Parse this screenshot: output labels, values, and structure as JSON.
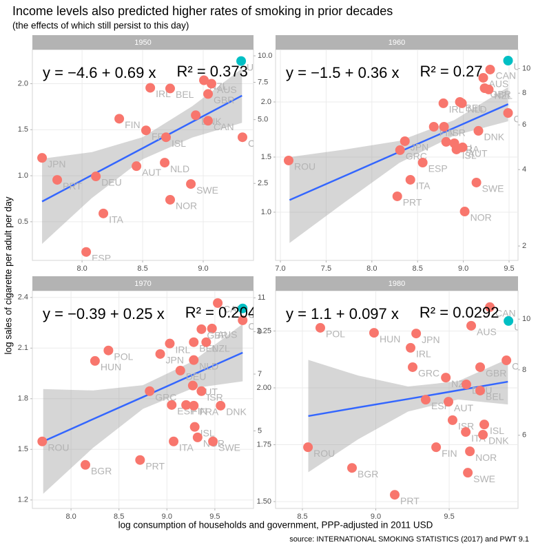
{
  "title": "Income levels also predicted higher rates of smoking in prior decades",
  "subtitle": "(the effects of which still persist to this day)",
  "ylabel": "log sales of cigarette per adult per day",
  "xlabel": "log consumption of households and government, PPP-adjusted in 2011 USD",
  "source": "source: INTERNATIONAL SMOKING STATISTICS (2017) and PWT 9.1",
  "chart_data": [
    {
      "type": "scatter",
      "title": "1950",
      "xlim": [
        7.59,
        9.415
      ],
      "ylim": [
        0.08,
        2.37
      ],
      "y2lim": [
        1.083,
        10.7
      ],
      "y2log": true,
      "xticks": [
        {
          "value": 8,
          "label": "8.0"
        },
        8.5,
        {
          "value": 9,
          "label": "9.0"
        }
      ],
      "yticks": [
        0.5,
        {
          "value": 1,
          "label": "1.0"
        },
        1.5,
        {
          "value": 2,
          "label": "2.0"
        }
      ],
      "y2ticks": [
        2.5,
        {
          "value": 5,
          "label": "5.0"
        },
        7.5,
        {
          "value": 10,
          "label": "10.0"
        }
      ],
      "grid": true,
      "series": [
        {
          "color": "#F8766D",
          "labels": [
            "NZL",
            "AUS",
            "IRL",
            "BEL",
            "GBR",
            "DNK",
            "FIN",
            "CAN",
            "FRA",
            "ISL",
            "CHE",
            "JPN",
            "AUT",
            "NLD",
            "DEU",
            "PRT",
            "SWE",
            "NOR",
            "ITA",
            "ESP"
          ],
          "x": [
            9.006,
            9.068,
            8.563,
            8.727,
            9.04,
            8.938,
            8.307,
            9.04,
            8.528,
            8.693,
            9.324,
            7.67,
            8.449,
            8.682,
            8.114,
            7.795,
            8.898,
            8.727,
            8.176,
            8.034
          ],
          "values": [
            2.037,
            2.0,
            1.955,
            1.948,
            1.888,
            1.657,
            1.619,
            1.597,
            1.493,
            1.418,
            1.418,
            1.194,
            1.104,
            1.142,
            0.993,
            0.955,
            0.91,
            0.739,
            0.59,
            0.172
          ]
        },
        {
          "color": "#00BFC4",
          "labels": [
            "USA"
          ],
          "x": [
            9.313
          ],
          "values": [
            2.246
          ]
        }
      ],
      "fit": {
        "color": "#3366FF",
        "band_color": "#999999",
        "x": [
          7.67,
          8.08,
          8.5,
          8.91,
          9.32
        ],
        "values": [
          0.72,
          1.006,
          1.299,
          1.585,
          1.87
        ],
        "lower": [
          0.26,
          0.756,
          1.179,
          1.415,
          1.575
        ],
        "upper": [
          1.185,
          1.256,
          1.419,
          1.755,
          2.165
        ]
      },
      "equation": "y = −4.6 + 0.69 x",
      "r_squared": "R² = 0.373"
    },
    {
      "type": "scatter",
      "title": "1960",
      "xlim": [
        6.947,
        9.598
      ],
      "ylim": [
        0.5625,
        2.475
      ],
      "y2lim": [
        1.755,
        11.88
      ],
      "y2log": true,
      "xticks": [
        {
          "value": 7,
          "label": "7.0"
        },
        7.5,
        {
          "value": 8,
          "label": "8.0"
        },
        8.5,
        {
          "value": 9,
          "label": "9.0"
        },
        9.5
      ],
      "yticks": [
        {
          "value": 1,
          "label": "1.0"
        },
        1.5,
        {
          "value": 2,
          "label": "2.0"
        }
      ],
      "y2ticks": [
        2,
        4,
        6,
        8,
        10
      ],
      "grid": true,
      "series": [
        {
          "color": "#F8766D",
          "labels": [
            "CAN",
            "AUS",
            "GBR",
            "NZL",
            "IRL",
            "BEL",
            "NLD",
            "CHE",
            "DNK",
            "FIN",
            "ISR",
            "DEU",
            "FRA",
            "ISL",
            "AUT",
            "JPN",
            "GRC",
            "ESP",
            "ROU",
            "ITA",
            "SWE",
            "PRT",
            "NOR"
          ],
          "x": [
            9.293,
            9.218,
            9.233,
            9.278,
            8.782,
            8.962,
            8.985,
            9.489,
            9.165,
            8.677,
            8.789,
            8.812,
            8.902,
            8.925,
            8.992,
            8.361,
            8.308,
            8.556,
            7.09,
            8.421,
            9.143,
            8.278,
            9.015
          ],
          "values": [
            2.294,
            2.219,
            2.125,
            2.113,
            1.988,
            2.0,
            1.988,
            1.9,
            1.738,
            1.775,
            1.775,
            1.638,
            1.625,
            1.569,
            1.588,
            1.644,
            1.563,
            1.45,
            1.469,
            1.294,
            1.269,
            1.144,
            1.006
          ]
        },
        {
          "color": "#00BFC4",
          "labels": [
            "USA"
          ],
          "x": [
            9.489
          ],
          "values": [
            2.375
          ]
        }
      ],
      "fit": {
        "color": "#3366FF",
        "band_color": "#999999",
        "x": [
          7.1,
          7.7,
          8.3,
          8.9,
          9.49
        ],
        "values": [
          1.11,
          1.328,
          1.547,
          1.765,
          1.98
        ],
        "lower": [
          0.72,
          1.088,
          1.447,
          1.695,
          1.825
        ],
        "upper": [
          1.5,
          1.568,
          1.647,
          1.835,
          2.135
        ]
      },
      "equation": "y = −1.5 + 0.36 x",
      "r_squared": "R² = 0.27"
    },
    {
      "type": "scatter",
      "title": "1970",
      "xlim": [
        7.597,
        9.903
      ],
      "ylim": [
        1.15,
        2.44
      ],
      "y2lim": [
        3.158,
        11.47
      ],
      "y2log": true,
      "xticks": [
        {
          "value": 8,
          "label": "8.0"
        },
        8.5,
        {
          "value": 9,
          "label": "9.0"
        },
        9.5
      ],
      "yticks": [
        1.2,
        1.5,
        1.8,
        2.1,
        2.4
      ],
      "y2ticks": [
        5,
        7,
        9,
        11
      ],
      "grid": true,
      "series": [
        {
          "color": "#F8766D",
          "labels": [
            "CAN",
            "CHE",
            "AUS",
            "GBR",
            "BEL",
            "NZL",
            "IRL",
            "JPN",
            "POL",
            "HUN",
            "DEU",
            "NLD",
            "AUT",
            "GRC",
            "ESP",
            "FIN",
            "ISR",
            "FRA",
            "DNK",
            "ISL",
            "NOR",
            "SWE",
            "ITA",
            "ROU",
            "BGR",
            "PRT"
          ],
          "x": [
            9.53,
            9.79,
            9.47,
            9.36,
            9.28,
            9.41,
            9.03,
            8.93,
            8.39,
            8.25,
            9.14,
            9.28,
            9.27,
            8.82,
            9.05,
            9.2,
            9.36,
            9.28,
            9.56,
            9.29,
            9.32,
            9.48,
            9.07,
            7.7,
            8.15,
            8.72
          ],
          "values": [
            2.367,
            2.265,
            2.216,
            2.212,
            2.135,
            2.135,
            2.127,
            2.065,
            2.086,
            2.024,
            1.967,
            2.029,
            1.878,
            1.845,
            1.763,
            1.763,
            1.845,
            1.759,
            1.759,
            1.633,
            1.571,
            1.547,
            1.547,
            1.547,
            1.408,
            1.437
          ]
        },
        {
          "color": "#00BFC4",
          "labels": [
            "USA"
          ],
          "x": [
            9.79
          ],
          "values": [
            2.335
          ]
        }
      ],
      "fit": {
        "color": "#3366FF",
        "band_color": "#999999",
        "x": [
          7.71,
          8.23,
          8.75,
          9.27,
          9.79
        ],
        "values": [
          1.547,
          1.679,
          1.81,
          1.942,
          2.073
        ],
        "lower": [
          1.237,
          1.509,
          1.74,
          1.862,
          1.903
        ],
        "upper": [
          1.857,
          1.849,
          1.88,
          2.022,
          2.243
        ]
      },
      "equation": "y = −0.39 + 0.25 x",
      "r_squared": "R² = 0.204"
    },
    {
      "type": "scatter",
      "title": "1980",
      "xlim": [
        8.317,
        9.969
      ],
      "ylim": [
        1.47,
        2.427
      ],
      "y2lim": [
        4.349,
        11.33
      ],
      "y2log": true,
      "xticks": [
        8.5,
        {
          "value": 9,
          "label": "9.0"
        },
        9.5
      ],
      "yticks": [
        {
          "value": 1.5,
          "label": "1.50"
        },
        1.75,
        {
          "value": 2,
          "label": "2.00"
        },
        2.25
      ],
      "y2ticks": [
        6,
        8,
        10
      ],
      "grid": true,
      "series": [
        {
          "color": "#F8766D",
          "labels": [
            "CAN",
            "AUS",
            "POL",
            "HUN",
            "JPN",
            "IRL",
            "CHE",
            "GRC",
            "GBR",
            "NZL",
            "DEU",
            "BEL",
            "ESP",
            "AUT",
            "ISR",
            "ISL",
            "ITA",
            "DNK",
            "FIN",
            "NOR",
            "SWE",
            "ROU",
            "BGR",
            "PRT"
          ],
          "x": [
            9.777,
            9.65,
            8.622,
            8.988,
            9.275,
            9.237,
            9.89,
            9.251,
            9.711,
            9.477,
            9.617,
            9.711,
            9.34,
            9.495,
            9.523,
            9.739,
            9.613,
            9.73,
            9.411,
            9.641,
            9.627,
            8.538,
            8.838,
            9.129
          ],
          "values": [
            2.355,
            2.273,
            2.264,
            2.242,
            2.239,
            2.176,
            2.121,
            2.091,
            2.091,
            2.045,
            2.015,
            1.988,
            1.948,
            1.939,
            1.858,
            1.839,
            1.806,
            1.794,
            1.739,
            1.721,
            1.627,
            1.739,
            1.648,
            1.53
          ]
        },
        {
          "color": "#00BFC4",
          "labels": [
            "USA"
          ],
          "x": [
            9.904
          ],
          "values": [
            2.294
          ]
        }
      ],
      "fit": {
        "color": "#3366FF",
        "band_color": "#999999",
        "x": [
          8.54,
          8.88,
          9.22,
          9.56,
          9.9
        ],
        "values": [
          1.876,
          1.914,
          1.951,
          1.989,
          2.027
        ],
        "lower": [
          1.629,
          1.774,
          1.896,
          1.949,
          1.927
        ],
        "upper": [
          2.123,
          2.054,
          2.006,
          2.029,
          2.127
        ]
      },
      "equation": "y = 1.1 + 0.097 x",
      "r_squared": "R² = 0.0292"
    }
  ]
}
